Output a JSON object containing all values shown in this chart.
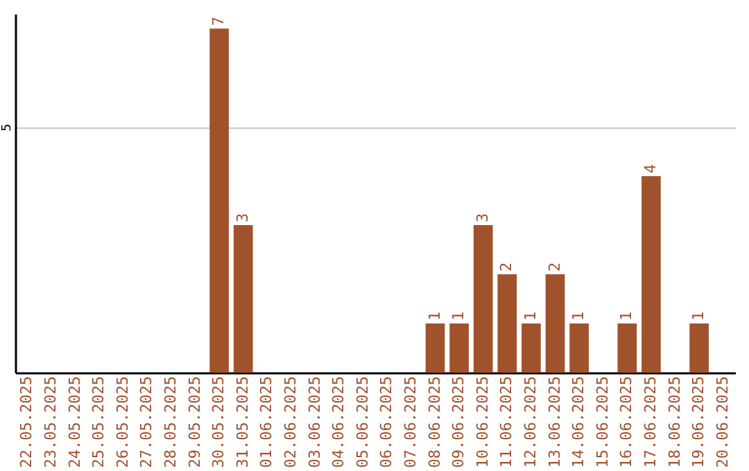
{
  "chart_data": {
    "type": "bar",
    "categories": [
      "22.05.2025",
      "23.05.2025",
      "24.05.2025",
      "25.05.2025",
      "26.05.2025",
      "27.05.2025",
      "28.05.2025",
      "29.05.2025",
      "30.05.2025",
      "31.05.2025",
      "01.06.2025",
      "02.06.2025",
      "03.06.2025",
      "04.06.2025",
      "05.06.2025",
      "06.06.2025",
      "07.06.2025",
      "08.06.2025",
      "09.06.2025",
      "10.06.2025",
      "11.06.2025",
      "12.06.2025",
      "13.06.2025",
      "14.06.2025",
      "15.06.2025",
      "16.06.2025",
      "17.06.2025",
      "18.06.2025",
      "19.06.2025",
      "20.06.2025"
    ],
    "values": [
      0,
      0,
      0,
      0,
      0,
      0,
      0,
      0,
      7,
      3,
      0,
      0,
      0,
      0,
      0,
      0,
      0,
      1,
      1,
      3,
      2,
      1,
      2,
      1,
      0,
      1,
      4,
      0,
      1,
      0
    ],
    "value_labels": [
      null,
      null,
      null,
      null,
      null,
      null,
      null,
      null,
      "7",
      "3",
      null,
      null,
      null,
      null,
      null,
      null,
      null,
      "1",
      "1",
      "3",
      "2",
      "1",
      "2",
      "1",
      null,
      "1",
      "4",
      null,
      "1",
      null
    ],
    "color": "#a0522d",
    "ylim": [
      0,
      7.3
    ],
    "yticks": [
      5
    ],
    "grid": "y"
  }
}
